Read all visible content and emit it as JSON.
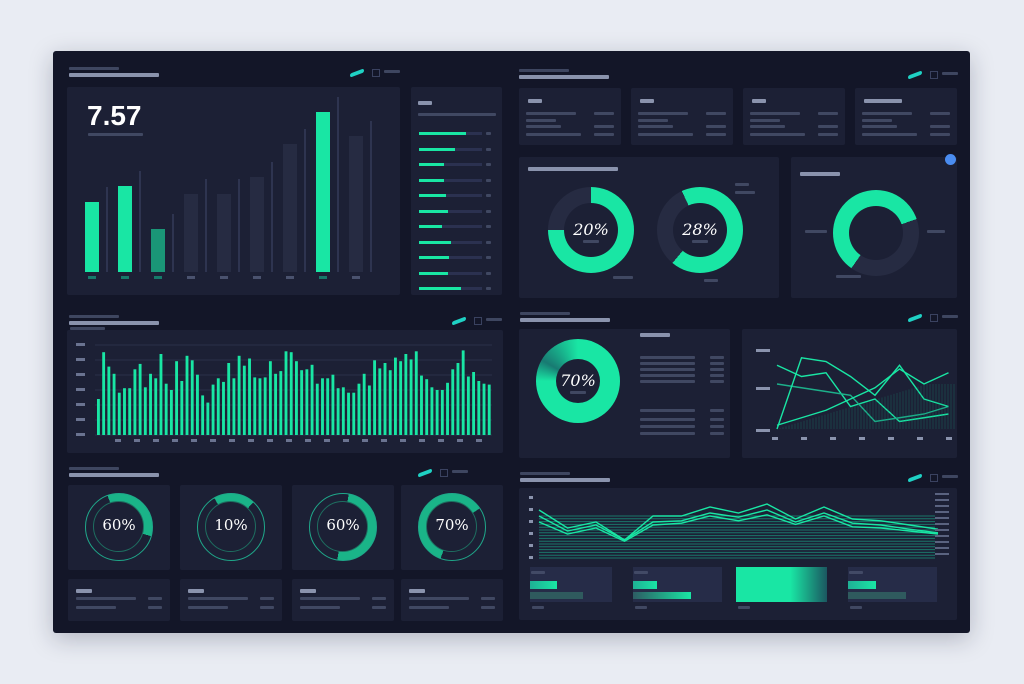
{
  "colors": {
    "accent": "#19e6a4",
    "accent_dim": "#167a6a",
    "card": "#1c2035",
    "frame": "#131628",
    "dot": "#4a8cf0"
  },
  "kpi": {
    "value": "7.57"
  },
  "top_bars": {
    "values": [
      70,
      86,
      43,
      78,
      78,
      95,
      128,
      160,
      136
    ],
    "highlight": [
      0,
      1,
      2,
      7
    ]
  },
  "progress_list": {
    "values": [
      0.75,
      0.57,
      0.4,
      0.4,
      0.43,
      0.46,
      0.37,
      0.51,
      0.48,
      0.46,
      0.67
    ]
  },
  "donuts_top": [
    {
      "label": "20%",
      "fill": 0.75
    },
    {
      "label": "28%",
      "fill": 0.68
    }
  ],
  "donut_right": {
    "fill": 0.6
  },
  "donut_mid": {
    "label": "70%",
    "fill": 1.0
  },
  "mid_bars": {
    "values": [
      40,
      92,
      76,
      68,
      47,
      52,
      52,
      73,
      79,
      53,
      68,
      63,
      90,
      57,
      50,
      82,
      60,
      88,
      83,
      67,
      44,
      36,
      56,
      63,
      59,
      80,
      63,
      88,
      77,
      85,
      64,
      63,
      64,
      82,
      68,
      71,
      93,
      92,
      82,
      72,
      73,
      78,
      57,
      63,
      63,
      67,
      52,
      53,
      47,
      47,
      57,
      68,
      55,
      83,
      74,
      80,
      72,
      86,
      82,
      90,
      84,
      93,
      66,
      62,
      53,
      50,
      50,
      58,
      73,
      80,
      94,
      65,
      70,
      60,
      57,
      56
    ]
  },
  "rings": [
    {
      "label": "60%",
      "fill": 0.35
    },
    {
      "label": "10%",
      "fill": 0.2
    },
    {
      "label": "60%",
      "fill": 0.5
    },
    {
      "label": "70%",
      "fill": 0.6
    }
  ],
  "line_mid": {
    "series": [
      [
        85,
        70,
        75,
        30,
        40,
        10,
        15,
        20
      ],
      [
        60,
        55,
        50,
        45,
        10,
        15,
        20,
        30
      ],
      [
        5,
        15,
        25,
        40,
        55,
        80,
        60,
        75
      ],
      [
        0,
        95,
        90,
        70,
        45,
        85,
        40,
        30
      ]
    ]
  },
  "line_bottom": {
    "series": [
      [
        80,
        50,
        60,
        30,
        70,
        70,
        85,
        75,
        90,
        65,
        85,
        65,
        62,
        55,
        48
      ],
      [
        70,
        45,
        55,
        30,
        60,
        62,
        75,
        68,
        80,
        60,
        75,
        58,
        55,
        48,
        42
      ],
      [
        60,
        40,
        50,
        28,
        55,
        58,
        70,
        62,
        72,
        56,
        70,
        52,
        50,
        45,
        40
      ]
    ]
  },
  "bottom_bars": [
    {
      "fill": 0.33,
      "fill2": 0.65
    },
    {
      "fill": 0.27,
      "fill2": 0.65
    },
    {
      "fill": 1.0,
      "fill2": 0
    },
    {
      "fill": 0.32,
      "fill2": 0.65
    }
  ]
}
